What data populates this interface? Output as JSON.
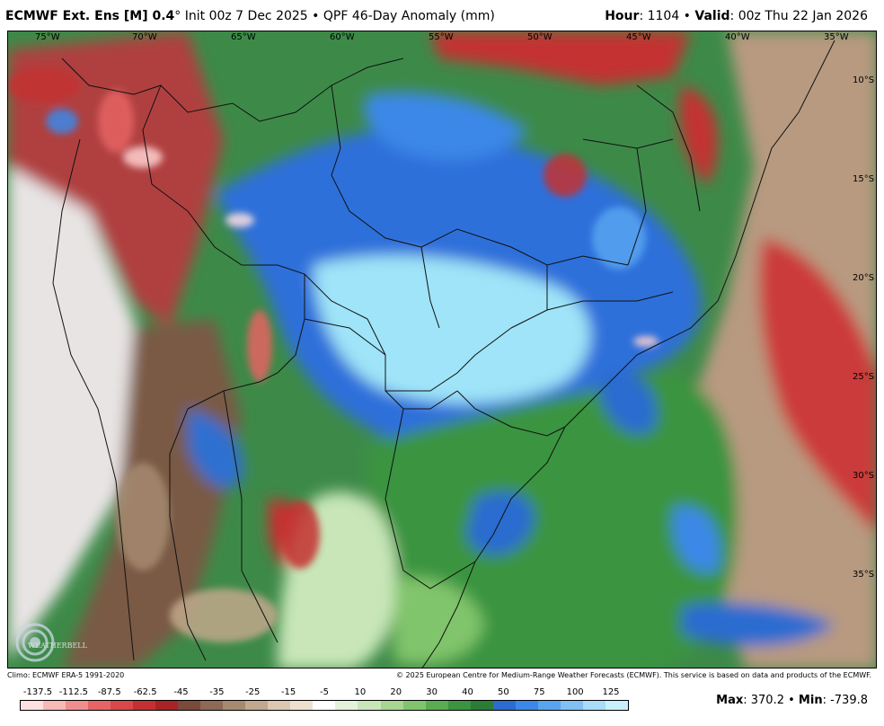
{
  "header": {
    "model_bold": "ECMWF Ext. Ens [M] 0.4",
    "model_rest": "° Init 00z 7 Dec 2025 • QPF 46-Day Anomaly (mm)",
    "hour_label": "Hour",
    "hour_value": ": 1104 • ",
    "valid_label": "Valid",
    "valid_value": ": 00z Thu 22 Jan 2026"
  },
  "map": {
    "lon_labels": [
      "75°W",
      "70°W",
      "65°W",
      "60°W",
      "55°W",
      "50°W",
      "45°W",
      "40°W",
      "35°W"
    ],
    "lat_labels": [
      "10°S",
      "15°S",
      "20°S",
      "25°S",
      "30°S",
      "35°S"
    ],
    "logo_text": "WEATHERBELL"
  },
  "footer": {
    "climo": "Climo: ECMWF ERA-5 1991-2020",
    "copyright": "© 2025 European Centre for Medium-Range Weather Forecasts (ECMWF). This service is based on data and products of the ECMWF.",
    "max_label": "Max",
    "max_value": ": 370.2 • ",
    "min_label": "Min",
    "min_value": ": -739.8"
  },
  "colorbar": {
    "ticks": [
      "-137.5",
      "-112.5",
      "-87.5",
      "-62.5",
      "-45",
      "-35",
      "-25",
      "-15",
      "-5",
      "10",
      "20",
      "30",
      "40",
      "50",
      "75",
      "100",
      "125"
    ],
    "colors": [
      "#ffe0e0",
      "#f8b8b8",
      "#f08e8e",
      "#e66464",
      "#d94848",
      "#c43030",
      "#a82424",
      "#7a4a3a",
      "#8e6a54",
      "#a68a70",
      "#c2a88c",
      "#dcc8b0",
      "#eee0d0",
      "#ffffff",
      "#e4f2dc",
      "#c8e6b8",
      "#a6d690",
      "#80c46c",
      "#5aac50",
      "#3a9440",
      "#2a7c36",
      "#2a6cd0",
      "#3a88e8",
      "#58a4f0",
      "#80c0f4",
      "#a8dcf8",
      "#c8f0fc"
    ]
  }
}
